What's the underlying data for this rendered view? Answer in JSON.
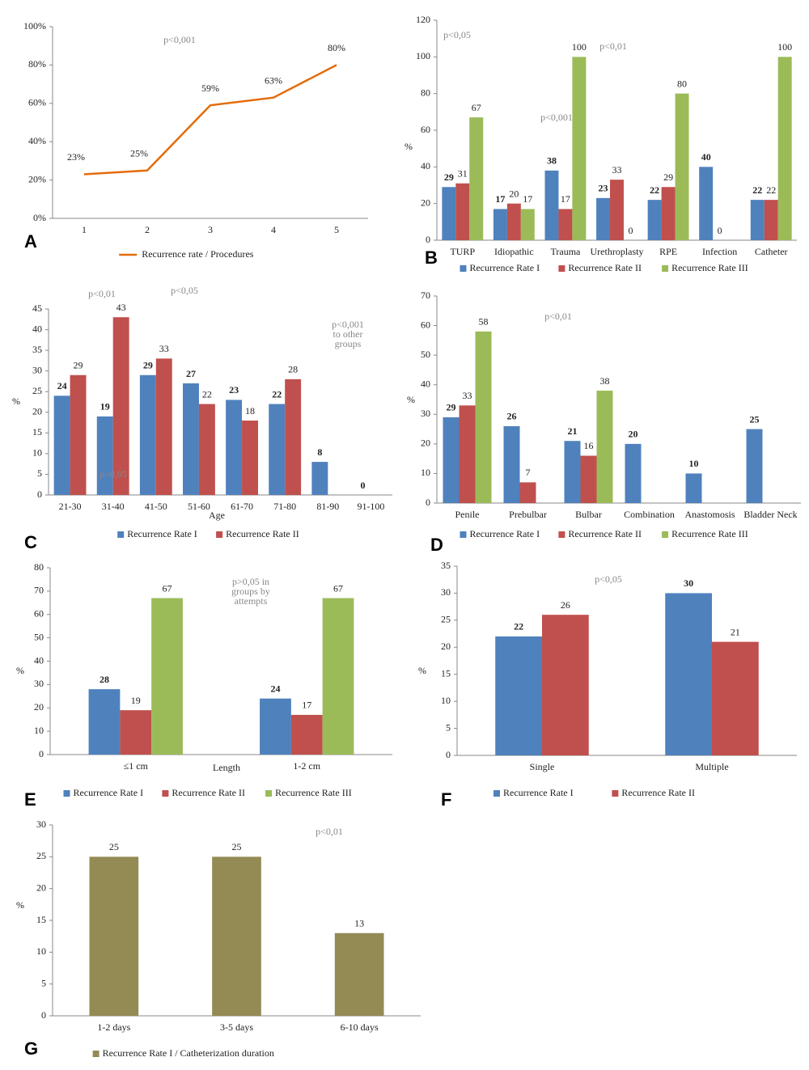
{
  "chart_data": [
    {
      "type": "line",
      "panel": "A",
      "categories": [
        "1",
        "2",
        "3",
        "4",
        "5"
      ],
      "series": [
        {
          "name": "Recurrence rate / Procedures",
          "color": "#e46c0a",
          "values": [
            23,
            25,
            59,
            63,
            80
          ],
          "value_labels": [
            "23%",
            "25%",
            "59%",
            "63%",
            "80%"
          ]
        }
      ],
      "ylim": [
        0,
        100
      ],
      "yticks": [
        {
          "value": 0,
          "label": "0%"
        },
        {
          "value": 20,
          "label": "20%"
        },
        {
          "value": 40,
          "label": "40%"
        },
        {
          "value": 60,
          "label": "60%"
        },
        {
          "value": 80,
          "label": "80%"
        },
        {
          "value": 100,
          "label": "100%"
        }
      ],
      "annotations": [
        "p<0,001"
      ]
    },
    {
      "type": "bar",
      "panel": "B",
      "y_label": "%",
      "categories": [
        "TURP",
        "Idiopathic",
        "Trauma",
        "Urethroplasty",
        "RPE",
        "Infection",
        "Catheter"
      ],
      "series": [
        {
          "name": "Recurrence Rate I",
          "color": "#4f81bd",
          "values": [
            29,
            17,
            38,
            23,
            22,
            40,
            22
          ]
        },
        {
          "name": "Recurrence Rate II",
          "color": "#c0504d",
          "values": [
            31,
            20,
            17,
            33,
            29,
            0,
            22
          ]
        },
        {
          "name": "Recurrence Rate III",
          "color": "#9bbb59",
          "values": [
            67,
            17,
            100,
            0,
            80,
            null,
            100
          ]
        }
      ],
      "ylim": [
        0,
        120
      ],
      "yticks": [
        0,
        20,
        40,
        60,
        80,
        100,
        120
      ],
      "annotations": [
        "p<0,05",
        "p<0,001",
        "p<0,01"
      ]
    },
    {
      "type": "bar",
      "panel": "C",
      "x_label": "Age",
      "y_label": "%",
      "categories": [
        "21-30",
        "31-40",
        "41-50",
        "51-60",
        "61-70",
        "71-80",
        "81-90",
        "91-100"
      ],
      "series": [
        {
          "name": "Recurrence Rate I",
          "color": "#4f81bd",
          "values": [
            24,
            19,
            29,
            27,
            23,
            22,
            8,
            0
          ]
        },
        {
          "name": "Recurrence Rate II",
          "color": "#c0504d",
          "values": [
            29,
            43,
            33,
            22,
            18,
            28,
            null,
            null
          ]
        }
      ],
      "ylim": [
        0,
        45
      ],
      "yticks": [
        0,
        5,
        10,
        15,
        20,
        25,
        30,
        35,
        40,
        45
      ],
      "annotations": [
        "p<0,01",
        "p<0,05",
        "p<0,05",
        [
          "p<0,001",
          "to other",
          "groups"
        ]
      ]
    },
    {
      "type": "bar",
      "panel": "D",
      "y_label": "%",
      "categories": [
        "Penile",
        "Prebulbar",
        "Bulbar",
        "Combination",
        "Anastomosis",
        "Bladder Neck"
      ],
      "series": [
        {
          "name": "Recurrence Rate I",
          "color": "#4f81bd",
          "values": [
            29,
            26,
            21,
            20,
            10,
            25
          ]
        },
        {
          "name": "Recurrence Rate II",
          "color": "#c0504d",
          "values": [
            33,
            7,
            16,
            null,
            null,
            null
          ]
        },
        {
          "name": "Recurrence Rate III",
          "color": "#9bbb59",
          "values": [
            58,
            null,
            38,
            null,
            null,
            null
          ]
        }
      ],
      "ylim": [
        0,
        70
      ],
      "yticks": [
        0,
        10,
        20,
        30,
        40,
        50,
        60,
        70
      ],
      "annotations": [
        "p<0,01"
      ]
    },
    {
      "type": "bar",
      "panel": "E",
      "x_label": "Length",
      "y_label": "%",
      "categories": [
        "≤1 cm",
        "1-2 cm"
      ],
      "series": [
        {
          "name": "Recurrence Rate I",
          "color": "#4f81bd",
          "values": [
            28,
            24
          ]
        },
        {
          "name": "Recurrence Rate II",
          "color": "#c0504d",
          "values": [
            19,
            17
          ]
        },
        {
          "name": "Recurrence Rate III",
          "color": "#9bbb59",
          "values": [
            67,
            67
          ]
        }
      ],
      "ylim": [
        0,
        80
      ],
      "yticks": [
        0,
        10,
        20,
        30,
        40,
        50,
        60,
        70,
        80
      ],
      "annotations": [
        [
          "p>0,05 in",
          "groups by",
          "attempts"
        ]
      ]
    },
    {
      "type": "bar",
      "panel": "F",
      "y_label": "%",
      "categories": [
        "Single",
        "Multiple"
      ],
      "series": [
        {
          "name": "Recurrence Rate I",
          "color": "#4f81bd",
          "values": [
            22,
            30
          ]
        },
        {
          "name": "Recurrence Rate II",
          "color": "#c0504d",
          "values": [
            26,
            21
          ]
        }
      ],
      "ylim": [
        0,
        35
      ],
      "yticks": [
        0,
        5,
        10,
        15,
        20,
        25,
        30,
        35
      ],
      "annotations": [
        "p<0,05"
      ]
    },
    {
      "type": "bar",
      "panel": "G",
      "y_label": "%",
      "categories": [
        "1-2 days",
        "3-5 days",
        "6-10 days"
      ],
      "series": [
        {
          "name": "Recurrence Rate I / Catheterization duration",
          "color": "#948a54",
          "values": [
            25,
            25,
            13
          ]
        }
      ],
      "ylim": [
        0,
        30
      ],
      "yticks": [
        0,
        5,
        10,
        15,
        20,
        25,
        30
      ],
      "annotations": [
        "p<0,01"
      ]
    }
  ]
}
